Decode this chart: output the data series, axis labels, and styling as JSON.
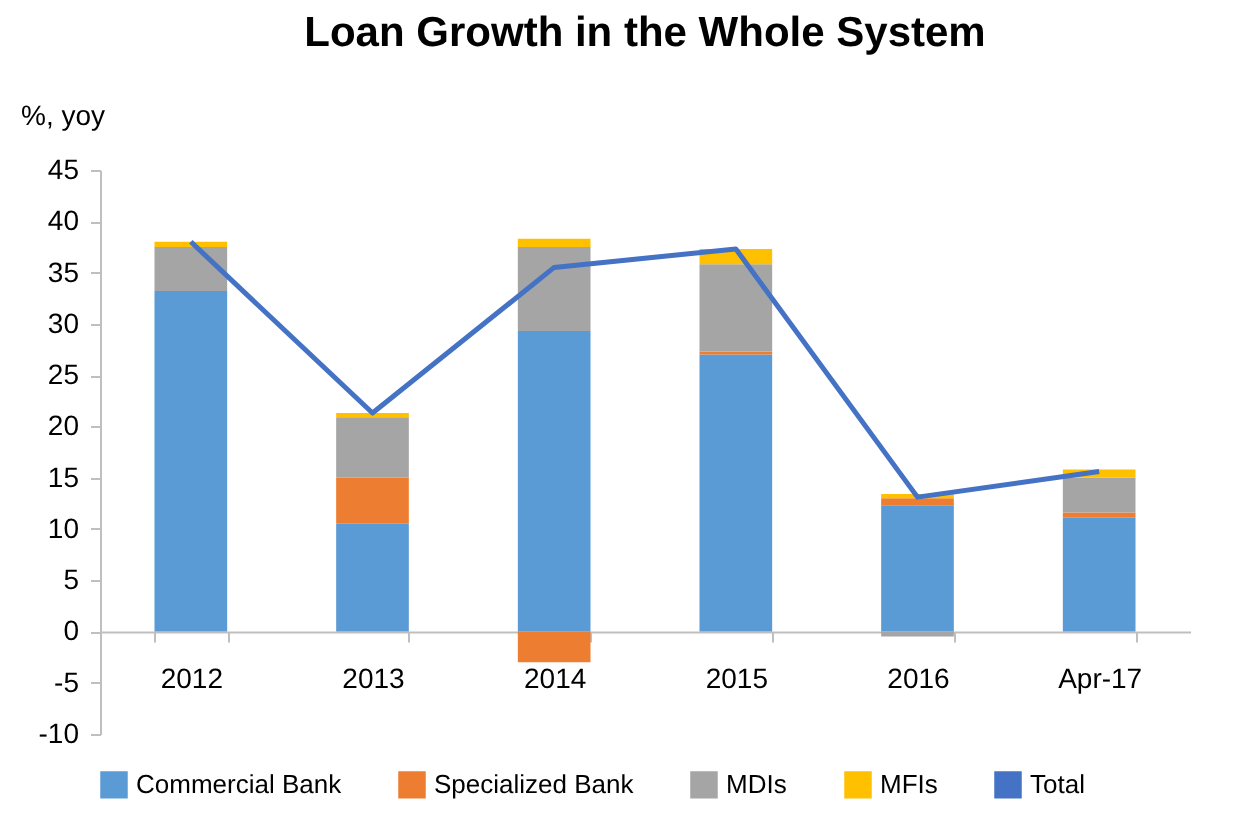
{
  "chart_data": {
    "type": "bar",
    "title": "Loan Growth in the Whole System",
    "ylabel": "%, yoy",
    "categories": [
      "2012",
      "2013",
      "2014",
      "2015",
      "2016",
      "Apr-17"
    ],
    "stacked": true,
    "series": [
      {
        "name": "Commercial Bank",
        "color": "#5b9bd5",
        "values": [
          33.2,
          10.5,
          29.3,
          27.0,
          12.3,
          11.1
        ]
      },
      {
        "name": "Specialized Bank",
        "color": "#ed7d31",
        "values": [
          0,
          4.5,
          -3.0,
          0.3,
          0.7,
          0.5
        ]
      },
      {
        "name": "MDIs",
        "color": "#a5a5a5",
        "values": [
          4.3,
          5.9,
          8.2,
          8.5,
          -0.5,
          3.4
        ]
      },
      {
        "name": "MFIs",
        "color": "#ffc000",
        "values": [
          0.5,
          0.4,
          0.8,
          1.5,
          0.4,
          0.8
        ]
      },
      {
        "name": "Total",
        "color": "#4472c4",
        "type": "line",
        "values": [
          38.0,
          21.3,
          35.5,
          37.3,
          13.1,
          15.6
        ]
      }
    ],
    "ylim": [
      -10,
      45
    ],
    "yticks": [
      -10,
      -5,
      0,
      5,
      10,
      15,
      20,
      25,
      30,
      35,
      40,
      45
    ],
    "grid": false,
    "legend": "bottom"
  }
}
